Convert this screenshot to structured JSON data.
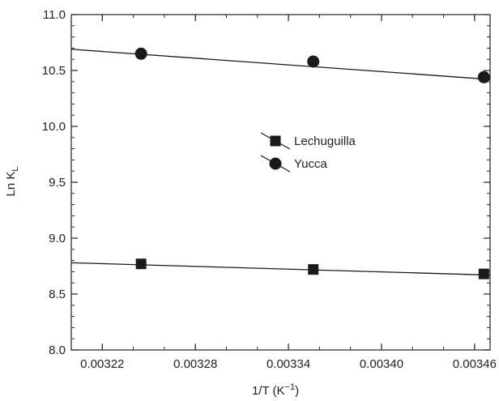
{
  "chart_data": {
    "type": "scatter",
    "xlabel": "1/T (K",
    "xlabel_sup": "−1",
    "xlabel_close": ")",
    "ylabel": "Ln K",
    "ylabel_sub": "L",
    "xlim": [
      0.0032,
      0.00347
    ],
    "ylim": [
      8.0,
      11.0
    ],
    "x_ticks": [
      0.00322,
      0.00328,
      0.00334,
      0.0034,
      0.00346
    ],
    "x_tick_labels": [
      "0.00322",
      "0.00328",
      "0.00334",
      "0.00340",
      "0.00346"
    ],
    "x_minor_step": 2e-05,
    "y_ticks": [
      8.0,
      8.5,
      9.0,
      9.5,
      10.0,
      10.5,
      11.0
    ],
    "y_tick_labels": [
      "8.0",
      "8.5",
      "9.0",
      "9.5",
      "10.0",
      "10.5",
      "11.0"
    ],
    "y_minor_step": 0.1,
    "grid": false,
    "legend_position": "center",
    "series": [
      {
        "name": "Lechuguilla",
        "marker": "square",
        "color": "#1a1a1a",
        "x": [
          0.003245,
          0.003356,
          0.003466
        ],
        "y": [
          8.77,
          8.72,
          8.68
        ],
        "fit_line": {
          "x": [
            0.0032,
            0.00347
          ],
          "y": [
            8.78,
            8.67
          ]
        }
      },
      {
        "name": "Yucca",
        "marker": "circle",
        "color": "#1a1a1a",
        "x": [
          0.003245,
          0.003356,
          0.003466
        ],
        "y": [
          10.65,
          10.58,
          10.44
        ],
        "fit_line": {
          "x": [
            0.0032,
            0.00347
          ],
          "y": [
            10.69,
            10.42
          ]
        }
      }
    ]
  }
}
